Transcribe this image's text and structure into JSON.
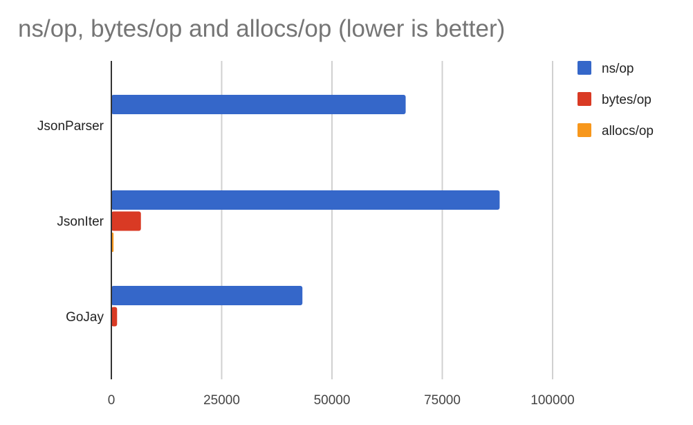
{
  "chart_data": {
    "type": "bar",
    "orientation": "horizontal",
    "title": "ns/op, bytes/op and allocs/op (lower is better)",
    "categories": [
      "JsonParser",
      "JsonIter",
      "GoJay"
    ],
    "series": [
      {
        "name": "ns/op",
        "color": "#3567c9",
        "values": [
          66700,
          88000,
          43300
        ]
      },
      {
        "name": "bytes/op",
        "color": "#d93a24",
        "values": [
          0,
          6700,
          1300
        ]
      },
      {
        "name": "allocs/op",
        "color": "#f7971c",
        "values": [
          0,
          500,
          0
        ]
      }
    ],
    "xlim": [
      0,
      100000
    ],
    "xticks": [
      "0",
      "25000",
      "50000",
      "75000",
      "100000"
    ],
    "xtick_values": [
      0,
      25000,
      50000,
      75000,
      100000
    ],
    "grid": true,
    "legend": "right",
    "xlabel": "",
    "ylabel": ""
  }
}
